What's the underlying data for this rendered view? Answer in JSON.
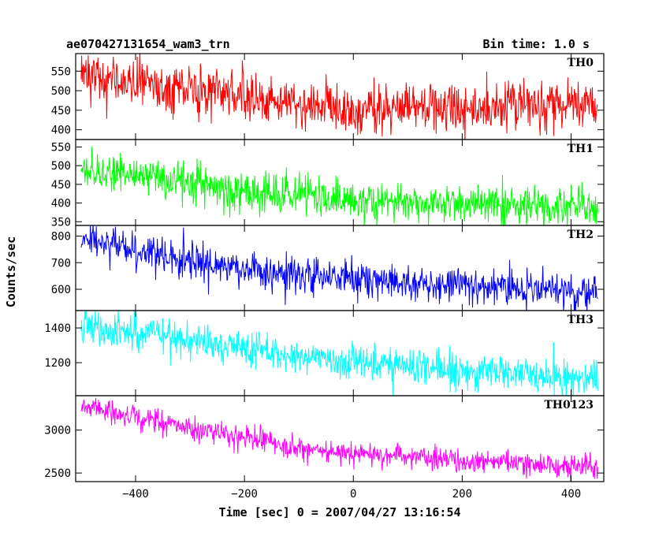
{
  "header": {
    "title": "ae070427131654_wam3_trn",
    "bin_time": "Bin time: 1.0 s"
  },
  "chart_data": {
    "type": "line",
    "xlabel": "Time [sec] 0 = 2007/04/27 13:16:54",
    "ylabel": "Counts/sec",
    "xlim": [
      -510,
      460
    ],
    "x_ticks": [
      -400,
      -200,
      0,
      200,
      400
    ],
    "x_tick_labels": [
      "−400",
      "−200",
      "0",
      "200",
      "400"
    ],
    "x_range": [
      -500,
      449
    ],
    "bin_seconds": 1.0,
    "panels": [
      {
        "name": "TH0",
        "color": "#ff0000",
        "ylim": [
          375,
          595
        ],
        "yticks": [
          400,
          450,
          500,
          550
        ],
        "ytick_labels": [
          "400",
          "450",
          "500",
          "550"
        ],
        "trend": [
          [
            -500,
            545
          ],
          [
            -400,
            520
          ],
          [
            -250,
            495
          ],
          [
            -150,
            470
          ],
          [
            0,
            455
          ],
          [
            200,
            455
          ],
          [
            350,
            460
          ],
          [
            449,
            470
          ]
        ],
        "noise": 32
      },
      {
        "name": "TH1",
        "color": "#00ff00",
        "ylim": [
          340,
          570
        ],
        "yticks": [
          350,
          400,
          450,
          500,
          550
        ],
        "ytick_labels": [
          "350",
          "400",
          "450",
          "500",
          "550"
        ],
        "trend": [
          [
            -500,
            490
          ],
          [
            -400,
            470
          ],
          [
            -250,
            440
          ],
          [
            -100,
            415
          ],
          [
            0,
            405
          ],
          [
            200,
            395
          ],
          [
            449,
            390
          ]
        ],
        "noise": 26
      },
      {
        "name": "TH2",
        "color": "#0000ff",
        "ylim": [
          520,
          840
        ],
        "yticks": [
          600,
          700,
          800
        ],
        "ytick_labels": [
          "600",
          "700",
          "800"
        ],
        "trend": [
          [
            -500,
            790
          ],
          [
            -400,
            745
          ],
          [
            -250,
            690
          ],
          [
            -100,
            655
          ],
          [
            0,
            640
          ],
          [
            200,
            610
          ],
          [
            449,
            590
          ]
        ],
        "noise": 34
      },
      {
        "name": "TH3",
        "color": "#00ffff",
        "ylim": [
          1010,
          1500
        ],
        "yticks": [
          1200,
          1400
        ],
        "ytick_labels": [
          "1200",
          "1400"
        ],
        "trend": [
          [
            -500,
            1420
          ],
          [
            -400,
            1370
          ],
          [
            -250,
            1300
          ],
          [
            -100,
            1240
          ],
          [
            0,
            1200
          ],
          [
            200,
            1160
          ],
          [
            449,
            1120
          ]
        ],
        "noise": 52
      },
      {
        "name": "TH0123",
        "color": "#ff00ff",
        "ylim": [
          2400,
          3400
        ],
        "yticks": [
          2500,
          3000
        ],
        "ytick_labels": [
          "2500",
          "3000"
        ],
        "trend": [
          [
            -500,
            3270
          ],
          [
            -400,
            3150
          ],
          [
            -250,
            2970
          ],
          [
            -100,
            2790
          ],
          [
            0,
            2720
          ],
          [
            200,
            2640
          ],
          [
            449,
            2570
          ]
        ],
        "noise": 68
      }
    ]
  }
}
